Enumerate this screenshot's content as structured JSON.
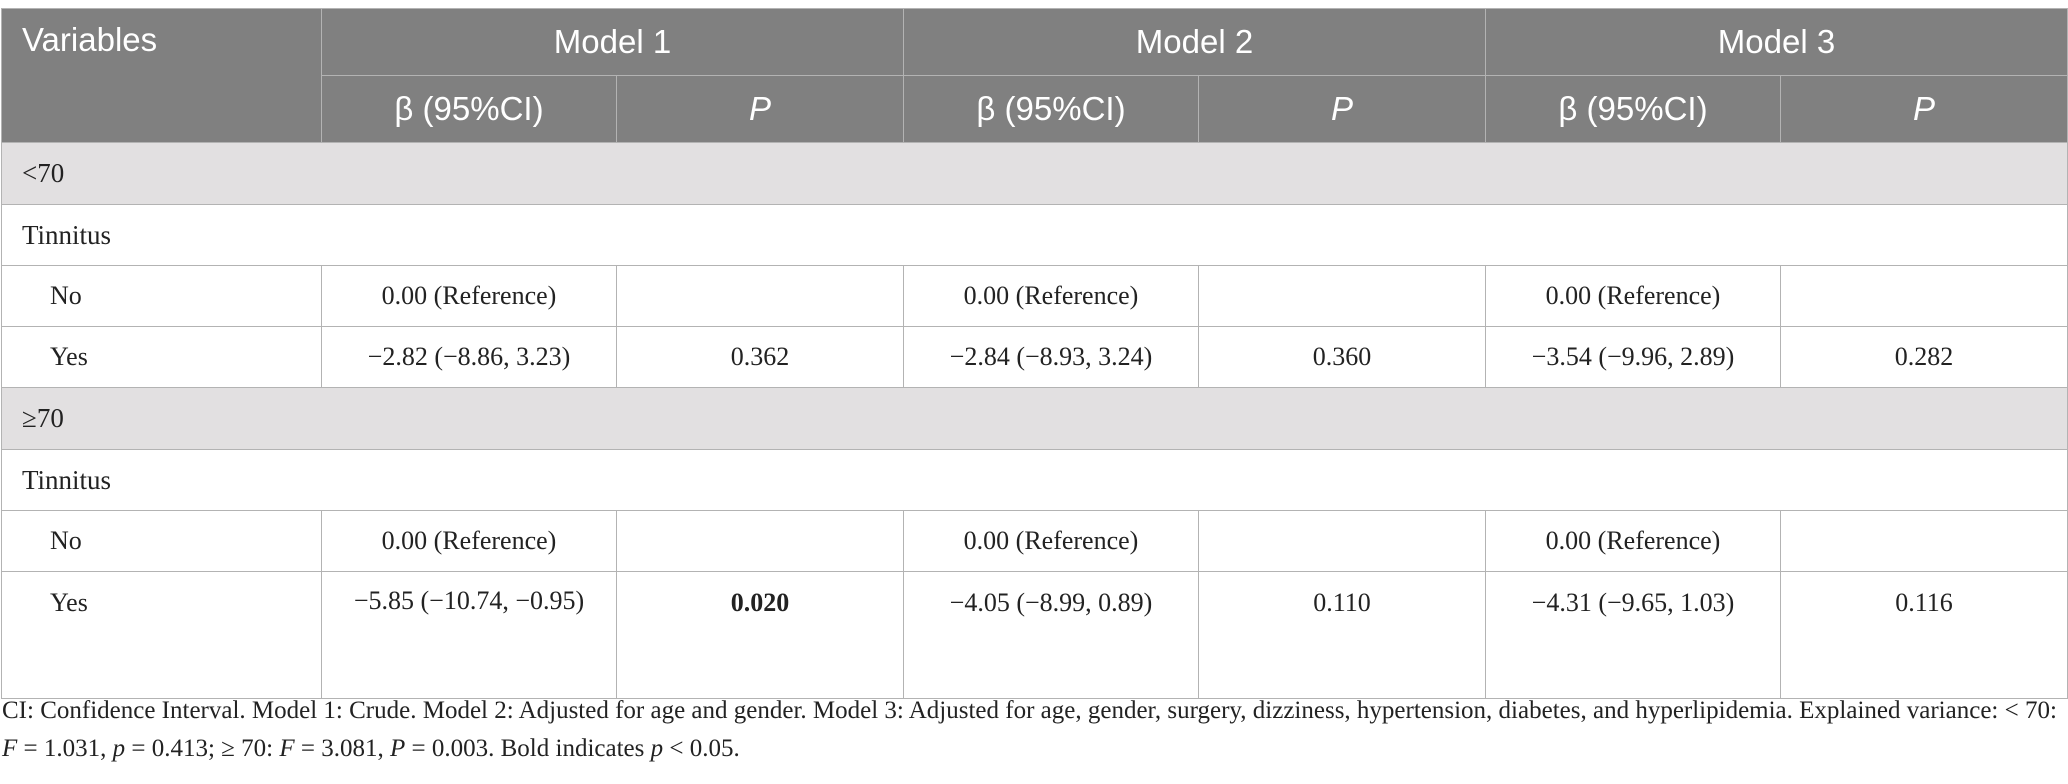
{
  "table": {
    "header": {
      "variables": "Variables",
      "models": [
        "Model 1",
        "Model 2",
        "Model 3"
      ],
      "beta": "β (95%CI)",
      "p": "P"
    },
    "groups": [
      {
        "label": "<70",
        "subgroup": "Tinnitus",
        "rows": [
          {
            "label": "No",
            "m1_beta": "0.00 (Reference)",
            "m1_p": "",
            "m2_beta": "0.00 (Reference)",
            "m2_p": "",
            "m3_beta": "0.00 (Reference)",
            "m3_p": ""
          },
          {
            "label": "Yes",
            "m1_beta": "−2.82 (−8.86, 3.23)",
            "m1_p": "0.362",
            "m2_beta": "−2.84 (−8.93, 3.24)",
            "m2_p": "0.360",
            "m3_beta": "−3.54 (−9.96, 2.89)",
            "m3_p": "0.282"
          }
        ]
      },
      {
        "label": "≥70",
        "subgroup": "Tinnitus",
        "rows": [
          {
            "label": "No",
            "m1_beta": "0.00 (Reference)",
            "m1_p": "",
            "m2_beta": "0.00 (Reference)",
            "m2_p": "",
            "m3_beta": "0.00 (Reference)",
            "m3_p": ""
          },
          {
            "label": "Yes",
            "m1_beta": "−5.85 (−10.74, −0.95)",
            "m1_p": "0.020",
            "m2_beta": "−4.05 (−8.99, 0.89)",
            "m2_p": "0.110",
            "m3_beta": "−4.31 (−9.65, 1.03)",
            "m3_p": "0.116"
          }
        ]
      }
    ]
  },
  "footnote": {
    "part1": "CI: Confidence Interval. Model 1: Crude. Model 2: Adjusted for age and gender. Model 3: Adjusted for age, gender, surgery, dizziness, hypertension, diabetes, and hyperlipidemia. Explained variance: < 70: ",
    "f1": "F",
    "part2": " = 1.031, ",
    "p1": "p",
    "part3": " = 0.413; ≥ 70: ",
    "f2": "F",
    "part4": " = 3.081, ",
    "p2": "P",
    "part5": " = 0.003. Bold indicates ",
    "p3": "p",
    "part6": " < 0.05."
  }
}
